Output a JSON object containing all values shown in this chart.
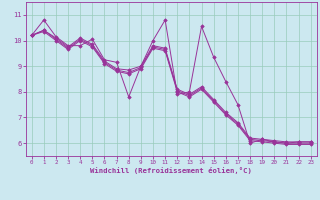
{
  "xlabel": "Windchill (Refroidissement éolien,°C)",
  "bg_color": "#cce8f0",
  "line_color": "#993399",
  "grid_color": "#99ccbb",
  "axis_color": "#993399",
  "xlim": [
    -0.5,
    23.5
  ],
  "ylim": [
    5.5,
    11.5
  ],
  "xticks": [
    0,
    1,
    2,
    3,
    4,
    5,
    6,
    7,
    8,
    9,
    10,
    11,
    12,
    13,
    14,
    15,
    16,
    17,
    18,
    19,
    20,
    21,
    22,
    23
  ],
  "yticks": [
    6,
    7,
    8,
    9,
    10,
    11
  ],
  "s1": [
    10.2,
    10.8,
    10.15,
    9.8,
    9.8,
    10.05,
    9.25,
    9.15,
    7.8,
    9.0,
    10.0,
    10.8,
    7.9,
    8.0,
    10.55,
    9.35,
    8.4,
    7.5,
    6.0,
    6.15,
    6.05,
    6.0,
    6.05,
    6.05
  ],
  "s2": [
    10.2,
    10.4,
    10.1,
    9.75,
    10.1,
    9.85,
    9.2,
    8.9,
    8.85,
    9.0,
    9.8,
    9.7,
    8.1,
    7.9,
    8.2,
    7.7,
    7.2,
    6.8,
    6.2,
    6.15,
    6.1,
    6.05,
    6.05,
    6.05
  ],
  "s3": [
    10.2,
    10.4,
    10.05,
    9.7,
    10.05,
    9.8,
    9.15,
    8.85,
    8.75,
    8.95,
    9.75,
    9.65,
    8.05,
    7.85,
    8.15,
    7.65,
    7.15,
    6.75,
    6.15,
    6.1,
    6.05,
    6.0,
    6.0,
    6.0
  ],
  "s4": [
    10.2,
    10.35,
    10.0,
    9.65,
    10.0,
    9.75,
    9.1,
    8.8,
    8.7,
    8.9,
    9.7,
    9.6,
    8.0,
    7.8,
    8.1,
    7.6,
    7.1,
    6.7,
    6.1,
    6.05,
    6.0,
    5.95,
    5.95,
    5.95
  ]
}
